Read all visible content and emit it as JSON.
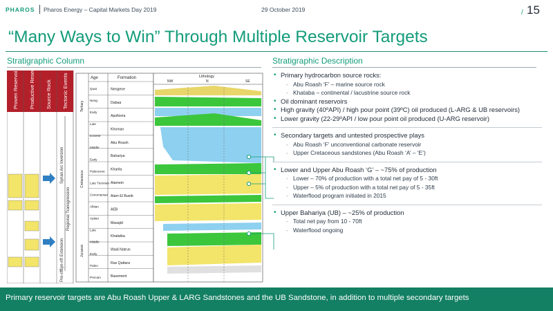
{
  "header": {
    "logo": "PHAROS",
    "company": "Pharos Energy – Capital Markets Day 2019",
    "date": "29 October 2019",
    "page_number": "15"
  },
  "title": "“Many Ways to Win” Through Multiple Reservoir Targets",
  "left_heading": "Stratigraphic Column",
  "right_heading": "Stratigraphic Description",
  "column": {
    "col_headers": [
      "Proven Reservoir",
      "Productive Reservoir",
      "Source Rock",
      "Tectonic Events"
    ],
    "age_header": "Age",
    "formation_header": "Formation",
    "lithology_header": "Lithology",
    "lithology_sub": [
      "NW",
      "N",
      "SE"
    ],
    "ages": [
      "Quat",
      "Neog",
      "Early",
      "Late",
      "Eocene",
      "Middle",
      "Early",
      "Paleocene",
      "Late Turonian",
      "Cenomanian",
      "Albian",
      "Aptian",
      "Late",
      "Middle",
      "Early",
      "Paleo",
      "Precam"
    ],
    "period_labels": [
      "Tertiary",
      "Cretaceous",
      "Jurassic"
    ],
    "formations": [
      "Neogene",
      "Dabaa",
      "Apollonia",
      "Khoman",
      "Abu Roash",
      "Bahariya",
      "Kharita",
      "Alamein",
      "Alam El Bueib",
      "AEB",
      "Masajid",
      "Khatatba",
      "Wadi Natrun",
      "Ras Qattara",
      "Basement"
    ],
    "tectonic": [
      "Syrian Arc Inversion",
      "Regional Transgression",
      "Syn-rift Extension",
      "Pre-rift"
    ]
  },
  "groups": [
    {
      "bullets": [
        {
          "text": "Primary hydrocarbon source rocks:",
          "subs": [
            "Abu Roash ‘F’ – marine source rock",
            "Khataba – continental / lacustrine source rock"
          ]
        },
        {
          "text": "Oil dominant reservoirs",
          "subs": []
        },
        {
          "text": "High gravity (40ºAPI) / high pour point (39ºC) oil produced (L-ARG & UB reservoirs)",
          "subs": []
        },
        {
          "text": "Lower gravity (22-29ºAPI / low pour point oil produced (U-ARG reservoir)",
          "subs": []
        }
      ]
    },
    {
      "bullets": [
        {
          "text": "Secondary targets and untested prospective plays",
          "subs": [
            "Abu Roash ‘F’ unconventional carbonate reservoir",
            "Upper Cretaceous sandstones (Abu Roash ‘A’ – ‘E’)"
          ]
        }
      ]
    },
    {
      "bullets": [
        {
          "text": "Lower and Upper Abu Roash ‘G’ – ~75% of production",
          "subs": [
            "Lower – 70% of production with a total net pay of 5 - 30ft",
            "Upper – 5% of production with a total net pay of 5 - 35ft",
            "Waterflood program initiated in 2015"
          ]
        }
      ]
    },
    {
      "bullets": [
        {
          "text": "Upper Bahariya (UB) – ~25% of production",
          "subs": [
            "Total net pay from 10 - 70ft",
            "Waterflood ongoing"
          ]
        }
      ]
    }
  ],
  "footer": "Primary reservoir targets are Abu Roash Upper & LARG Sandstones and the UB Sandstone, in addition to multiple secondary targets",
  "colors": {
    "brand_green": "#139c7a",
    "footer_green": "#137f63",
    "sand_yellow": "#f3e46a",
    "shale_green": "#3cc63c",
    "carbonate_blue": "#8ed0ef"
  }
}
